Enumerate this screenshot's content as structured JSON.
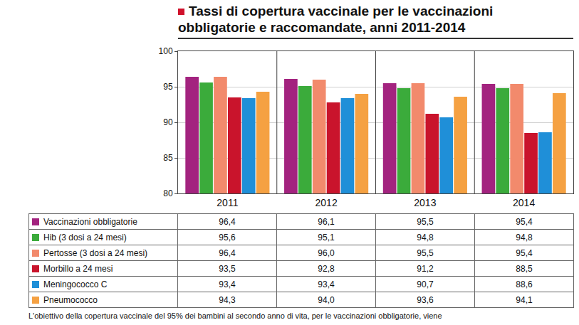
{
  "chart_data": {
    "type": "bar",
    "title": "Tassi di copertura vaccinale per le vaccinazioni obbligatorie e raccomandate, anni 2011-2014",
    "note": "L'obiettivo della copertura vaccinale del 95% dei bambini al secondo anno di vita, per le vaccinazioni obbligatorie, viene",
    "categories": [
      "2011",
      "2012",
      "2013",
      "2014"
    ],
    "series": [
      {
        "name": "Vaccinazioni obbligatorie",
        "color": "#a3237f",
        "values": [
          96.4,
          96.1,
          95.5,
          95.4
        ],
        "value_labels": [
          "96,4",
          "96,1",
          "95,5",
          "95,4"
        ]
      },
      {
        "name": "Hib (3 dosi a 24 mesi)",
        "color": "#3bab3b",
        "values": [
          95.6,
          95.1,
          94.8,
          94.8
        ],
        "value_labels": [
          "95,6",
          "95,1",
          "94,8",
          "94,8"
        ]
      },
      {
        "name": "Pertosse (3 dosi a 24 mesi)",
        "color": "#f28a6c",
        "values": [
          96.4,
          96.0,
          95.5,
          95.4
        ],
        "value_labels": [
          "96,4",
          "96,0",
          "95,5",
          "95,4"
        ]
      },
      {
        "name": "Morbillo a 24 mesi",
        "color": "#c9142c",
        "values": [
          93.5,
          92.8,
          91.2,
          88.5
        ],
        "value_labels": [
          "93,5",
          "92,8",
          "91,2",
          "88,5"
        ]
      },
      {
        "name": "Meningococco C",
        "color": "#1f8fd8",
        "values": [
          93.4,
          93.4,
          90.7,
          88.6
        ],
        "value_labels": [
          "93,4",
          "93,4",
          "90,7",
          "88,6"
        ]
      },
      {
        "name": "Pneumococco",
        "color": "#f5a142",
        "values": [
          94.3,
          94.0,
          93.6,
          94.1
        ],
        "value_labels": [
          "94,3",
          "94,0",
          "93,6",
          "94,1"
        ]
      }
    ],
    "ylim": [
      80,
      100
    ],
    "yticks": [
      80,
      85,
      90,
      95,
      100
    ],
    "grid": true
  }
}
